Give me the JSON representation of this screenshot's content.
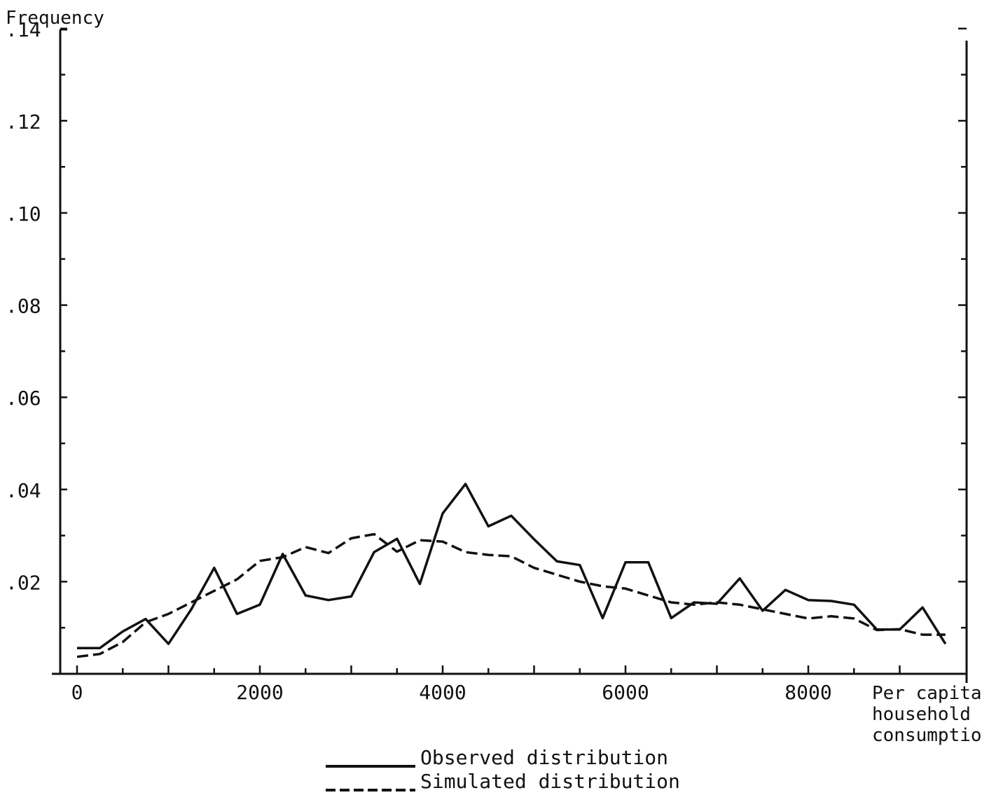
{
  "chart_data": {
    "type": "line",
    "ylabel": "Frequency",
    "xlabel_lines": [
      "Per capita",
      "household",
      "consumption"
    ],
    "x_ticks": [
      0,
      2000,
      4000,
      6000,
      8000
    ],
    "x_tick_labels": [
      "0",
      "2000",
      "4000",
      "6000",
      "8000"
    ],
    "y_ticks": [
      0.02,
      0.04,
      0.06,
      0.08,
      0.1,
      0.12,
      0.14
    ],
    "y_tick_labels": [
      ".02",
      ".04",
      ".06",
      ".08",
      ".10",
      ".12",
      ".14"
    ],
    "xlim": [
      0,
      9500
    ],
    "ylim": [
      0,
      0.14
    ],
    "grid": false,
    "legend_position": "bottom-center",
    "x": [
      0,
      250,
      500,
      750,
      1000,
      1250,
      1500,
      1750,
      2000,
      2250,
      2500,
      2750,
      3000,
      3250,
      3500,
      3750,
      4000,
      4250,
      4500,
      4750,
      5000,
      5250,
      5500,
      5750,
      6000,
      6250,
      6500,
      6750,
      7000,
      7250,
      7500,
      7750,
      8000,
      8250,
      8500,
      8750,
      9000,
      9250,
      9500
    ],
    "series": [
      {
        "name": "Observed distribution",
        "style": "solid",
        "values": [
          0.0056,
          0.0056,
          0.0092,
          0.0119,
          0.0065,
          0.014,
          0.023,
          0.013,
          0.015,
          0.026,
          0.017,
          0.016,
          0.0168,
          0.0264,
          0.0293,
          0.0195,
          0.0348,
          0.0412,
          0.032,
          0.0343,
          0.0292,
          0.0244,
          0.0236,
          0.0121,
          0.0242,
          0.0242,
          0.0121,
          0.0155,
          0.0152,
          0.0207,
          0.0137,
          0.0182,
          0.016,
          0.0158,
          0.015,
          0.0096,
          0.0096,
          0.0144,
          0.0065
        ]
      },
      {
        "name": "Simulated distribution",
        "style": "dashed",
        "values": [
          0.0037,
          0.0043,
          0.0069,
          0.0112,
          0.013,
          0.0155,
          0.018,
          0.0205,
          0.0245,
          0.0253,
          0.0275,
          0.0262,
          0.0294,
          0.0303,
          0.0265,
          0.029,
          0.0287,
          0.0264,
          0.0258,
          0.0255,
          0.023,
          0.0215,
          0.02,
          0.019,
          0.0185,
          0.017,
          0.0155,
          0.015,
          0.0155,
          0.015,
          0.014,
          0.013,
          0.012,
          0.0125,
          0.012,
          0.0095,
          0.0097,
          0.0085,
          0.0085
        ]
      }
    ]
  }
}
